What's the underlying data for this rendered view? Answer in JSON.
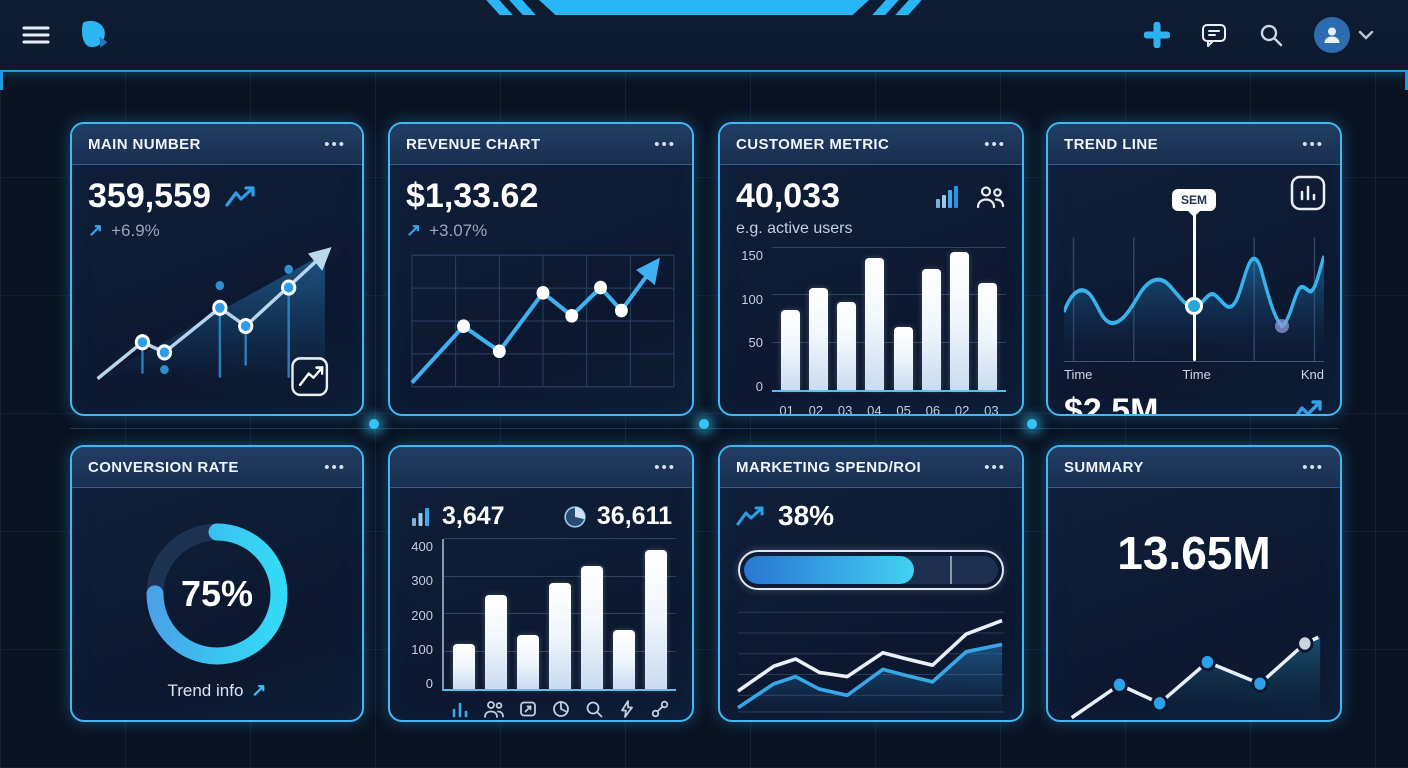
{
  "ui": {
    "ellipsis": "•••",
    "arrow_up_right": "↗"
  },
  "topbar": {
    "icons": [
      "hamburger",
      "brand-logo",
      "plus",
      "chat",
      "search",
      "avatar",
      "chevron-down"
    ]
  },
  "cards": {
    "main_number": {
      "title": "MAIN NUMBER",
      "value": "359,559",
      "delta": "+6.9%"
    },
    "revenue_chart": {
      "title": "REVENUE CHART",
      "value": "$1,33.62",
      "delta": "+3.07%"
    },
    "customer_metric": {
      "title": "CUSTOMER METRIC",
      "value": "40,033",
      "subtitle": "e.g. active users"
    },
    "trend_line": {
      "title": "TREND LINE",
      "tooltip": "SEM",
      "x_labels": [
        "Time",
        "Time",
        "Knd"
      ],
      "value": "$2.5M"
    },
    "conversion_rate": {
      "title": "CONVERSION RATE",
      "percent": "75%",
      "footer_link": "Trend info"
    },
    "activity": {
      "stat_bars": "3,647",
      "stat_pie": "36,611"
    },
    "marketing": {
      "title": "MARKETING SPEND/ROI",
      "percent": "38%"
    },
    "summary": {
      "title": "SUMMARY",
      "value": "13.65M"
    }
  },
  "chart_data": [
    {
      "id": "customer_bars",
      "type": "bar",
      "title": "CUSTOMER METRIC",
      "categories": [
        "01",
        "02",
        "03",
        "04",
        "05",
        "06",
        "02",
        "03"
      ],
      "values": [
        85,
        108,
        93,
        140,
        67,
        128,
        146,
        113
      ],
      "ylim": [
        0,
        150
      ],
      "yticks": [
        0,
        50,
        100,
        150
      ],
      "grid": true,
      "legend": "none"
    },
    {
      "id": "activity_bars",
      "type": "bar",
      "categories": [],
      "values": [
        120,
        250,
        143,
        283,
        328,
        158,
        372
      ],
      "ylim": [
        0,
        400
      ],
      "yticks": [
        0,
        100,
        200,
        300,
        400
      ],
      "grid": true,
      "legend": "none"
    },
    {
      "id": "conversion_donut",
      "type": "pie",
      "values": [
        75,
        25
      ],
      "labels": [
        "complete",
        "remaining"
      ],
      "center_label": "75%"
    },
    {
      "id": "marketing_progress",
      "type": "bar",
      "value": 67,
      "divider_at": 81,
      "label": "38%"
    },
    {
      "id": "main_number_spark",
      "type": "line",
      "values": [
        10,
        35,
        28,
        62,
        48,
        82,
        100
      ],
      "ylabel": ""
    },
    {
      "id": "revenue_spark",
      "type": "line",
      "values": [
        8,
        48,
        30,
        72,
        56,
        76,
        60,
        95
      ],
      "ylabel": ""
    },
    {
      "id": "marketing_lines",
      "type": "line",
      "series": [
        {
          "name": "spend",
          "values": [
            20,
            44,
            52,
            40,
            36,
            58,
            52,
            48,
            76,
            86
          ]
        },
        {
          "name": "roi",
          "values": [
            6,
            28,
            36,
            24,
            18,
            42,
            36,
            30,
            60,
            66
          ]
        }
      ]
    },
    {
      "id": "summary_spark",
      "type": "line",
      "values": [
        10,
        38,
        22,
        62,
        45,
        78
      ]
    }
  ]
}
